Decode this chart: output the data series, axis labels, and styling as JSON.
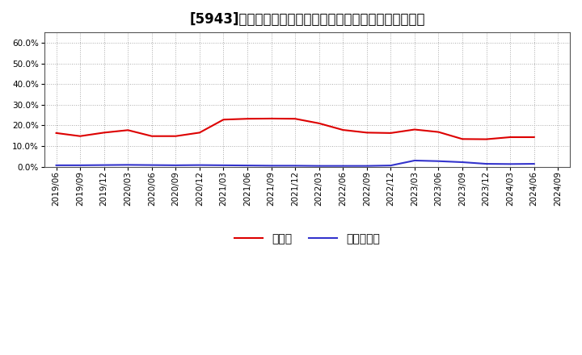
{
  "title": "[5943]　現預金、有利子負債の総資産に対する比率の推移",
  "x_labels": [
    "2019/06",
    "2019/09",
    "2019/12",
    "2020/03",
    "2020/06",
    "2020/09",
    "2020/12",
    "2021/03",
    "2021/06",
    "2021/09",
    "2021/12",
    "2022/03",
    "2022/06",
    "2022/09",
    "2022/12",
    "2023/03",
    "2023/06",
    "2023/09",
    "2023/12",
    "2024/03",
    "2024/06",
    "2024/09"
  ],
  "cash_values": [
    0.163,
    0.148,
    0.165,
    0.177,
    0.148,
    0.148,
    0.165,
    0.228,
    0.232,
    0.233,
    0.232,
    0.21,
    0.178,
    0.165,
    0.163,
    0.18,
    0.168,
    0.134,
    0.133,
    0.143,
    0.143,
    null
  ],
  "debt_values": [
    0.007,
    0.007,
    0.008,
    0.009,
    0.008,
    0.007,
    0.008,
    0.007,
    0.006,
    0.005,
    0.005,
    0.004,
    0.004,
    0.004,
    0.006,
    0.03,
    0.027,
    0.022,
    0.014,
    0.013,
    0.014,
    null
  ],
  "cash_color": "#dd0000",
  "debt_color": "#3333cc",
  "background_color": "#ffffff",
  "grid_color": "#aaaaaa",
  "ylim": [
    0.0,
    0.65
  ],
  "yticks": [
    0.0,
    0.1,
    0.2,
    0.3,
    0.4,
    0.5,
    0.6
  ],
  "legend_cash": "現預金",
  "legend_debt": "有利子負債",
  "title_fontsize": 12,
  "legend_fontsize": 10,
  "tick_fontsize": 7.5
}
